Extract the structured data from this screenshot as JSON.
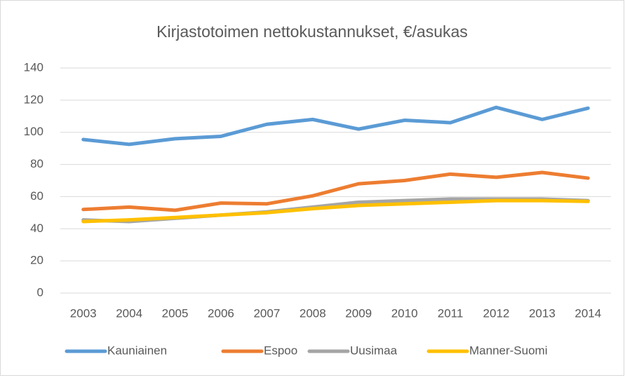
{
  "chart_data": {
    "type": "line",
    "title": "Kirjastotoimen nettokustannukset, €/asukas",
    "categories": [
      "2003",
      "2004",
      "2005",
      "2006",
      "2007",
      "2008",
      "2009",
      "2010",
      "2011",
      "2012",
      "2013",
      "2014"
    ],
    "series": [
      {
        "name": "Kauniainen",
        "color": "#5b9bd5",
        "values": [
          95.5,
          92.5,
          96,
          97.5,
          105,
          108,
          102,
          107.5,
          106,
          115.5,
          108,
          115
        ]
      },
      {
        "name": "Espoo",
        "color": "#ed7d31",
        "values": [
          52,
          53.5,
          51.5,
          56,
          55.5,
          60.5,
          68,
          70,
          74,
          72,
          75,
          71.5
        ]
      },
      {
        "name": "Uusimaa",
        "color": "#a5a5a5",
        "values": [
          45.5,
          44.5,
          46.5,
          48.5,
          50.5,
          53.5,
          56.5,
          57.5,
          58.5,
          58.5,
          58.5,
          57.5
        ]
      },
      {
        "name": "Manner-Suomi",
        "color": "#ffc000",
        "values": [
          44.5,
          45.5,
          47,
          48.5,
          50,
          52.5,
          54.5,
          55.5,
          56.5,
          57.5,
          57.5,
          57
        ]
      }
    ],
    "ylim": [
      0,
      140
    ],
    "yticks": [
      0,
      20,
      40,
      60,
      80,
      100,
      120,
      140
    ],
    "grid": true,
    "legend": "bottom"
  }
}
